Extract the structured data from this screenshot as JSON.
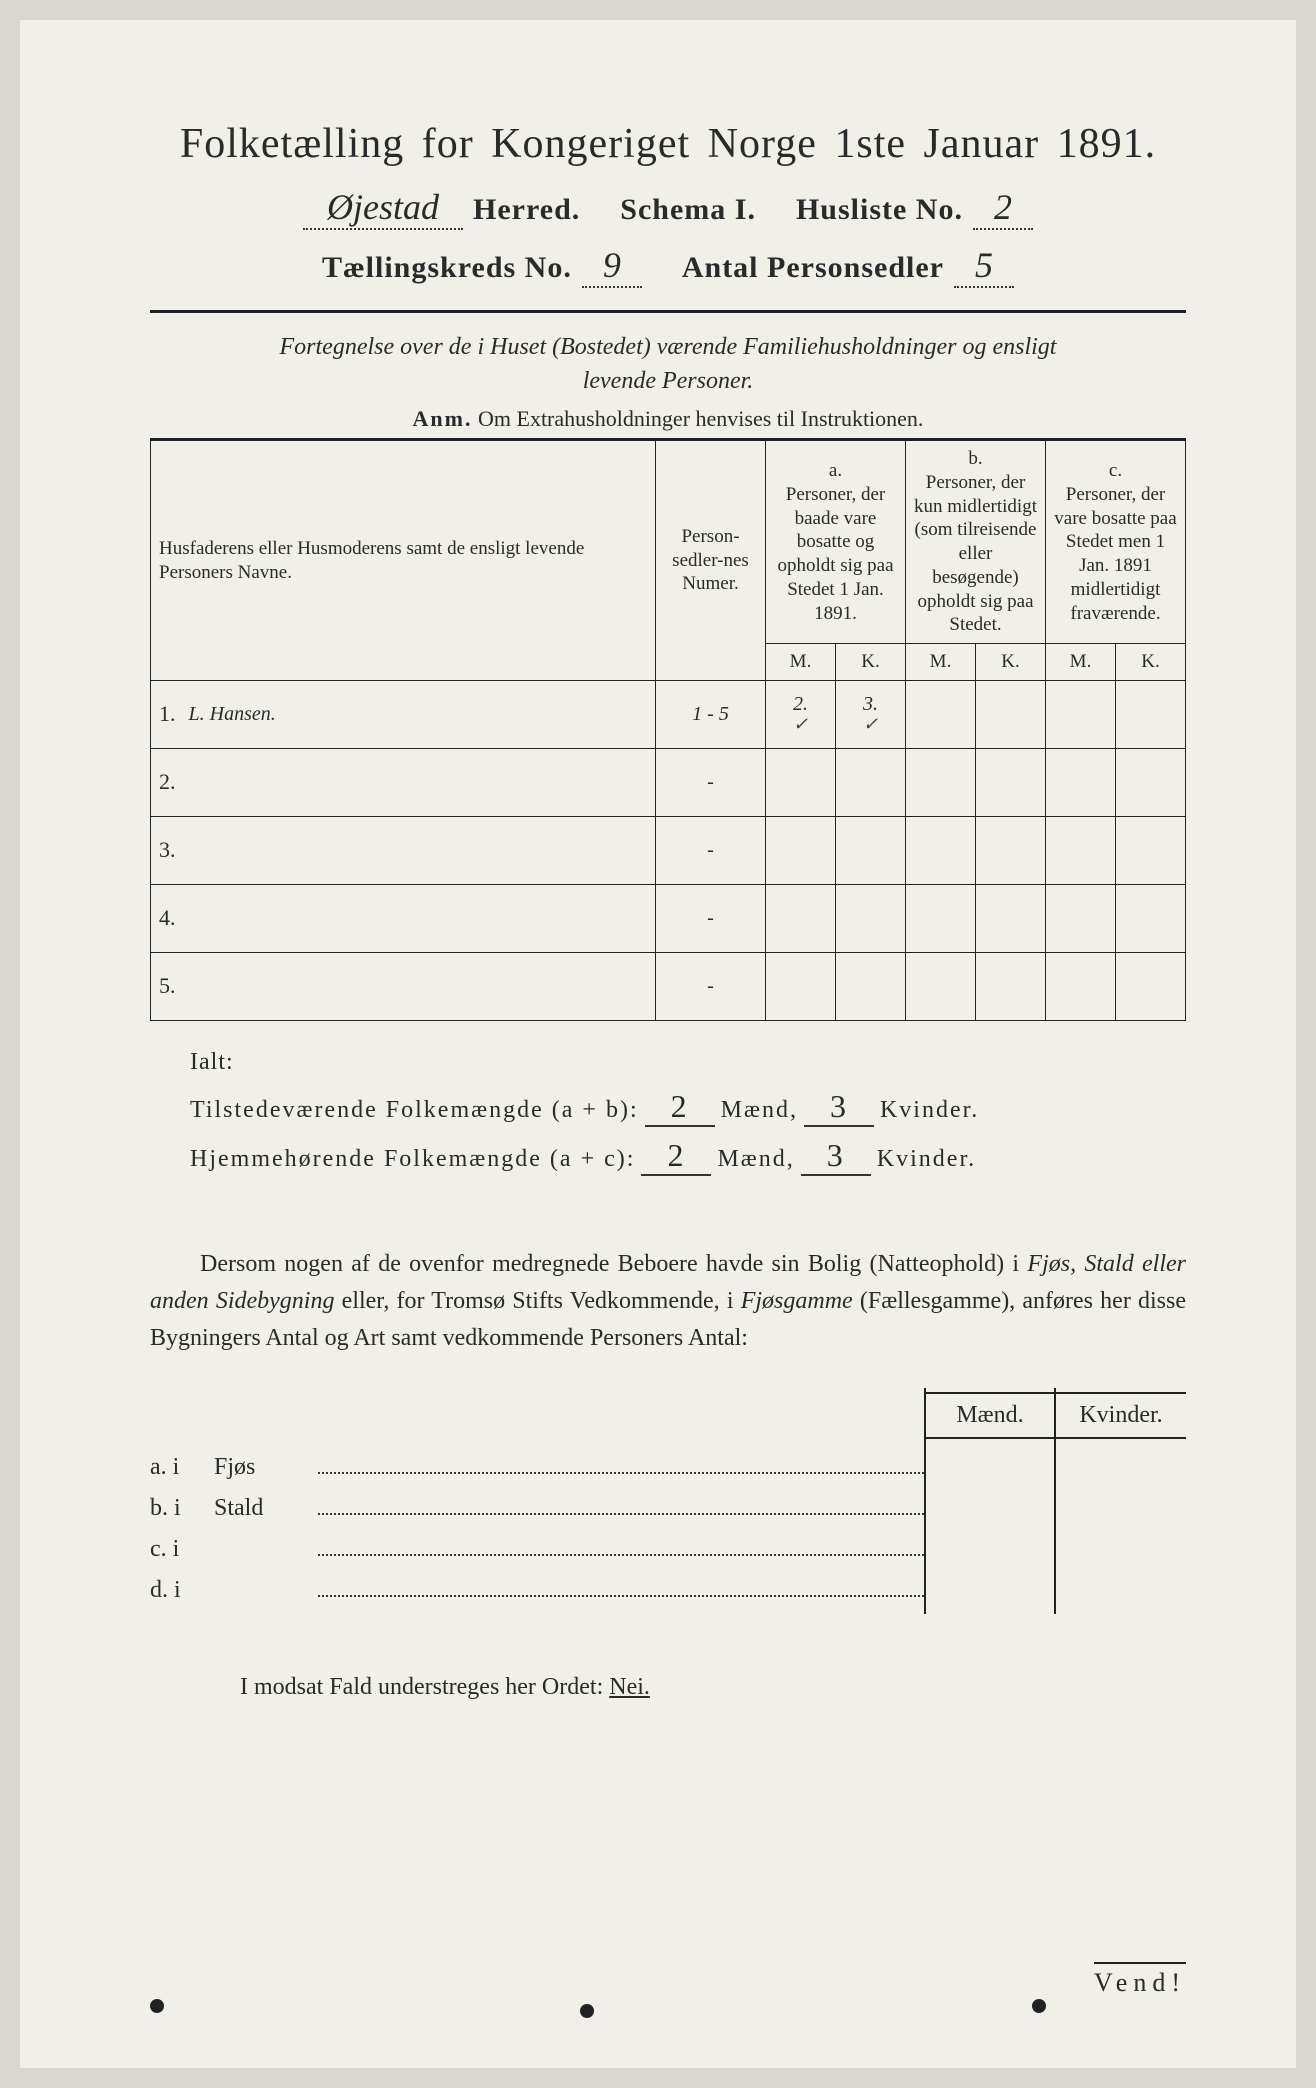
{
  "title": "Folketælling for Kongeriget Norge 1ste Januar 1891.",
  "header": {
    "herred_value": "Øjestad",
    "herred_label": "Herred.",
    "schema_label": "Schema I.",
    "husliste_label": "Husliste No.",
    "husliste_value": "2",
    "kreds_label": "Tællingskreds No.",
    "kreds_value": "9",
    "antal_label": "Antal Personsedler",
    "antal_value": "5"
  },
  "subtitle_line1": "Fortegnelse over de i Huset (Bostedet) værende Familiehusholdninger og ensligt",
  "subtitle_line2": "levende Personer.",
  "anm_prefix": "Anm.",
  "anm_text": "Om Extrahusholdninger henvises til Instruktionen.",
  "columns": {
    "name": "Husfaderens eller Husmoderens samt de ensligt levende Personers Navne.",
    "num": "Person-sedler-nes Numer.",
    "a_label": "a.",
    "a_text": "Personer, der baade vare bosatte og opholdt sig paa Stedet 1 Jan. 1891.",
    "b_label": "b.",
    "b_text": "Personer, der kun midlertidigt (som tilreisende eller besøgende) opholdt sig paa Stedet.",
    "c_label": "c.",
    "c_text": "Personer, der vare bosatte paa Stedet men 1 Jan. 1891 midlertidigt fraværende.",
    "M": "M.",
    "K": "K."
  },
  "rows": [
    {
      "n": "1.",
      "name": "L. Hansen.",
      "num": "1 - 5",
      "aM": "2.",
      "aK": "3.",
      "bM": "",
      "bK": "",
      "cM": "",
      "cK": "",
      "checkM": "✓",
      "checkK": "✓"
    },
    {
      "n": "2.",
      "name": "",
      "num": "-",
      "aM": "",
      "aK": "",
      "bM": "",
      "bK": "",
      "cM": "",
      "cK": ""
    },
    {
      "n": "3.",
      "name": "",
      "num": "-",
      "aM": "",
      "aK": "",
      "bM": "",
      "bK": "",
      "cM": "",
      "cK": ""
    },
    {
      "n": "4.",
      "name": "",
      "num": "-",
      "aM": "",
      "aK": "",
      "bM": "",
      "bK": "",
      "cM": "",
      "cK": ""
    },
    {
      "n": "5.",
      "name": "",
      "num": "-",
      "aM": "",
      "aK": "",
      "bM": "",
      "bK": "",
      "cM": "",
      "cK": ""
    }
  ],
  "ialt": "Ialt:",
  "sum1": {
    "label": "Tilstedeværende Folkemængde (a + b):",
    "maend": "2",
    "maend_label": "Mænd,",
    "kvinder": "3",
    "kvinder_label": "Kvinder."
  },
  "sum2": {
    "label": "Hjemmehørende Folkemængde (a + c):",
    "maend": "2",
    "maend_label": "Mænd,",
    "kvinder": "3",
    "kvinder_label": "Kvinder."
  },
  "para": {
    "p1": "Dersom nogen af de ovenfor medregnede Beboere havde sin Bolig (Natteophold) i ",
    "i1": "Fjøs, Stald eller anden Sidebygning",
    "p2": " eller, for Tromsø Stifts Vedkommende, i ",
    "i2": "Fjøsgamme",
    "p3": " (Fællesgamme), anføres her disse Bygningers Antal og Art samt vedkommende Personers Antal:"
  },
  "side": {
    "maend": "Mænd.",
    "kvinder": "Kvinder.",
    "rows": [
      {
        "lead": "a. i",
        "label": "Fjøs"
      },
      {
        "lead": "b. i",
        "label": "Stald"
      },
      {
        "lead": "c. i",
        "label": ""
      },
      {
        "lead": "d. i",
        "label": ""
      }
    ]
  },
  "nei": {
    "text": "I modsat Fald understreges her Ordet: ",
    "word": "Nei."
  },
  "vend": "Vend!",
  "colors": {
    "paper": "#f0efe8",
    "ink": "#2a2a2a"
  }
}
